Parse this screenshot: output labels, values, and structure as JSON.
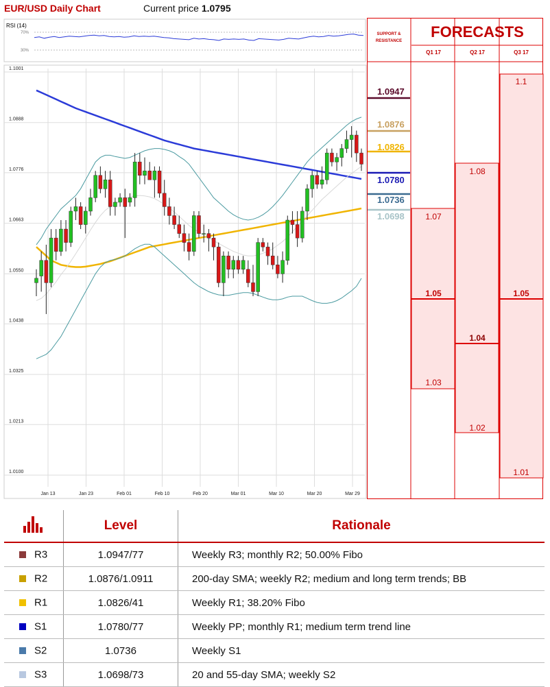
{
  "header": {
    "title": "EUR/USD Daily Chart",
    "current_label": "Current price",
    "current_value": "1.0795"
  },
  "rsi": {
    "label": "RSI (14)",
    "level70": "70%",
    "level30": "30%"
  },
  "forecasts_title": "FORECASTS",
  "sr_header": "SUPPORT & RESISTANCE",
  "quarters": [
    "Q1 17",
    "Q2 17",
    "Q3 17"
  ],
  "sr_levels": [
    {
      "value": "1.0947",
      "color": "#5a0a2a"
    },
    {
      "value": "1.0876",
      "color": "#c8a060"
    },
    {
      "value": "1.0826",
      "color": "#f0b400"
    },
    {
      "value": "1.0780",
      "color": "#1a1ab4"
    },
    {
      "value": "1.0736",
      "color": "#3a6a90"
    },
    {
      "value": "1.0698",
      "color": "#a8c4c8"
    }
  ],
  "forecast_ranges": [
    {
      "quarter": "Q1 17",
      "high": "1.07",
      "mid": "1.05",
      "low": "1.03"
    },
    {
      "quarter": "Q2 17",
      "high": "1.08",
      "mid": "1.04",
      "low": "1.02"
    },
    {
      "quarter": "Q3 17",
      "high": "1.1",
      "mid": "1.05",
      "low": "1.01"
    }
  ],
  "table": {
    "col_level": "Level",
    "col_rationale": "Rationale",
    "rows": [
      {
        "name": "R3",
        "level": "1.0947/77",
        "rationale": "Weekly R3; monthly R2; 50.00% Fibo",
        "color": "#8b3a3a"
      },
      {
        "name": "R2",
        "level": "1.0876/1.0911",
        "rationale": "200-day SMA; weekly R2; medium and long term trends; BB",
        "color": "#c8a000"
      },
      {
        "name": "R1",
        "level": "1.0826/41",
        "rationale": "Weekly R1; 38.20% Fibo",
        "color": "#f0c000"
      },
      {
        "name": "S1",
        "level": "1.0780/77",
        "rationale": "Weekly PP; monthly R1; medium term trend line",
        "color": "#0000c0"
      },
      {
        "name": "S2",
        "level": "1.0736",
        "rationale": "Weekly S1",
        "color": "#4a7aaa"
      },
      {
        "name": "S3",
        "level": "1.0698/73",
        "rationale": "20 and 55-day SMA; weekly S2",
        "color": "#b8c8e0"
      }
    ]
  },
  "chart_data": {
    "type": "candlestick",
    "title": "EUR/USD Daily Chart",
    "ylim": [
      1.01,
      1.1001
    ],
    "y_ticks": [
      "1.1001",
      "1.0888",
      "1.0776",
      "1.0663",
      "1.0550",
      "1.0438",
      "1.0325",
      "1.0213",
      "1.0100"
    ],
    "x_ticks": [
      "Jan 13",
      "Jan 23",
      "Feb 01",
      "Feb 10",
      "Feb 20",
      "Mar 01",
      "Mar 10",
      "Mar 20",
      "Mar 29"
    ],
    "candles": [
      [
        1.053,
        1.056,
        1.05,
        1.054
      ],
      [
        1.0545,
        1.06,
        1.051,
        1.058
      ],
      [
        1.058,
        1.0615,
        1.046,
        1.053
      ],
      [
        1.053,
        1.065,
        1.052,
        1.063
      ],
      [
        1.063,
        1.065,
        1.058,
        1.06
      ],
      [
        1.06,
        1.067,
        1.059,
        1.065
      ],
      [
        1.065,
        1.067,
        1.06,
        1.062
      ],
      [
        1.062,
        1.07,
        1.061,
        1.069
      ],
      [
        1.069,
        1.072,
        1.067,
        1.07
      ],
      [
        1.07,
        1.071,
        1.065,
        1.066
      ],
      [
        1.066,
        1.07,
        1.064,
        1.069
      ],
      [
        1.069,
        1.074,
        1.068,
        1.072
      ],
      [
        1.072,
        1.078,
        1.071,
        1.077
      ],
      [
        1.077,
        1.079,
        1.073,
        1.074
      ],
      [
        1.074,
        1.078,
        1.072,
        1.076
      ],
      [
        1.076,
        1.078,
        1.068,
        1.07
      ],
      [
        1.07,
        1.072,
        1.068,
        1.071
      ],
      [
        1.071,
        1.073,
        1.07,
        1.072
      ],
      [
        1.072,
        1.074,
        1.063,
        1.07
      ],
      [
        1.071,
        1.073,
        1.07,
        1.072
      ],
      [
        1.072,
        1.082,
        1.07,
        1.08
      ],
      [
        1.08,
        1.082,
        1.075,
        1.077
      ],
      [
        1.077,
        1.081,
        1.075,
        1.078
      ],
      [
        1.078,
        1.08,
        1.076,
        1.076
      ],
      [
        1.076,
        1.079,
        1.072,
        1.078
      ],
      [
        1.078,
        1.079,
        1.072,
        1.073
      ],
      [
        1.073,
        1.076,
        1.068,
        1.07
      ],
      [
        1.07,
        1.072,
        1.066,
        1.068
      ],
      [
        1.068,
        1.07,
        1.065,
        1.066
      ],
      [
        1.066,
        1.068,
        1.063,
        1.064
      ],
      [
        1.064,
        1.066,
        1.06,
        1.062
      ],
      [
        1.062,
        1.064,
        1.058,
        1.06
      ],
      [
        1.06,
        1.069,
        1.059,
        1.068
      ],
      [
        1.068,
        1.069,
        1.063,
        1.064
      ],
      [
        1.064,
        1.066,
        1.062,
        1.064
      ],
      [
        1.064,
        1.065,
        1.06,
        1.063
      ],
      [
        1.063,
        1.064,
        1.058,
        1.061
      ],
      [
        1.061,
        1.062,
        1.052,
        1.053
      ],
      [
        1.053,
        1.06,
        1.05,
        1.059
      ],
      [
        1.059,
        1.06,
        1.054,
        1.056
      ],
      [
        1.056,
        1.059,
        1.054,
        1.058
      ],
      [
        1.058,
        1.059,
        1.055,
        1.056
      ],
      [
        1.056,
        1.059,
        1.055,
        1.058
      ],
      [
        1.056,
        1.058,
        1.052,
        1.053
      ],
      [
        1.053,
        1.057,
        1.05,
        1.051
      ],
      [
        1.051,
        1.063,
        1.05,
        1.062
      ],
      [
        1.062,
        1.063,
        1.06,
        1.061
      ],
      [
        1.061,
        1.062,
        1.057,
        1.059
      ],
      [
        1.059,
        1.062,
        1.056,
        1.057
      ],
      [
        1.057,
        1.059,
        1.054,
        1.055
      ],
      [
        1.055,
        1.06,
        1.053,
        1.058
      ],
      [
        1.058,
        1.068,
        1.057,
        1.067
      ],
      [
        1.067,
        1.069,
        1.064,
        1.066
      ],
      [
        1.066,
        1.069,
        1.061,
        1.063
      ],
      [
        1.063,
        1.07,
        1.062,
        1.069
      ],
      [
        1.069,
        1.075,
        1.067,
        1.074
      ],
      [
        1.074,
        1.078,
        1.072,
        1.077
      ],
      [
        1.077,
        1.078,
        1.074,
        1.075
      ],
      [
        1.075,
        1.079,
        1.074,
        1.076
      ],
      [
        1.076,
        1.083,
        1.075,
        1.082
      ],
      [
        1.082,
        1.083,
        1.079,
        1.08
      ],
      [
        1.08,
        1.082,
        1.078,
        1.081
      ],
      [
        1.081,
        1.084,
        1.079,
        1.083
      ],
      [
        1.083,
        1.087,
        1.082,
        1.085
      ],
      [
        1.085,
        1.088,
        1.081,
        1.086
      ],
      [
        1.086,
        1.087,
        1.08,
        1.082
      ],
      [
        1.082,
        1.083,
        1.078,
        1.0795
      ]
    ],
    "series": [
      {
        "name": "200-day SMA",
        "color": "#2b3bd8",
        "values": [
          1.096,
          1.0955,
          1.095,
          1.0945,
          1.094,
          1.0935,
          1.093,
          1.0925,
          1.092,
          1.0916,
          1.0912,
          1.0908,
          1.0904,
          1.09,
          1.0896,
          1.0892,
          1.0888,
          1.0884,
          1.088,
          1.0876,
          1.0872,
          1.0868,
          1.0864,
          1.086,
          1.0856,
          1.0852,
          1.0848,
          1.0845,
          1.0842,
          1.0839,
          1.0836,
          1.0833,
          1.083,
          1.0828,
          1.0826,
          1.0824,
          1.0822,
          1.082,
          1.0818,
          1.0816,
          1.0814,
          1.0812,
          1.081,
          1.0808,
          1.0806,
          1.0804,
          1.0802,
          1.08,
          1.0798,
          1.0796,
          1.0794,
          1.0792,
          1.079,
          1.0788,
          1.0786,
          1.0784,
          1.0782,
          1.078,
          1.0778,
          1.0776,
          1.0774,
          1.0772,
          1.077,
          1.0768,
          1.0766,
          1.0764,
          1.0762
        ]
      },
      {
        "name": "55-day SMA",
        "color": "#f0b400",
        "values": [
          1.061,
          1.06,
          1.059,
          1.058,
          1.0575,
          1.057,
          1.0568,
          1.0566,
          1.0565,
          1.0565,
          1.0566,
          1.0568,
          1.057,
          1.0572,
          1.0575,
          1.0578,
          1.0582,
          1.0586,
          1.059,
          1.0594,
          1.0598,
          1.0602,
          1.0606,
          1.061,
          1.0612,
          1.0614,
          1.0616,
          1.0618,
          1.062,
          1.0622,
          1.0624,
          1.0626,
          1.0628,
          1.063,
          1.0632,
          1.0634,
          1.0636,
          1.0638,
          1.064,
          1.0642,
          1.0644,
          1.0646,
          1.0648,
          1.065,
          1.0652,
          1.0654,
          1.0656,
          1.0658,
          1.066,
          1.0662,
          1.0664,
          1.0666,
          1.0668,
          1.067,
          1.0672,
          1.0674,
          1.0676,
          1.0678,
          1.068,
          1.0682,
          1.0684,
          1.0686,
          1.0688,
          1.069,
          1.0692,
          1.0694,
          1.0696
        ]
      },
      {
        "name": "Upper BB",
        "color": "#4a9aa0",
        "values": [
          1.0615,
          1.063,
          1.065,
          1.0665,
          1.068,
          1.0695,
          1.0705,
          1.0715,
          1.0725,
          1.074,
          1.076,
          1.078,
          1.08,
          1.081,
          1.0815,
          1.0815,
          1.0812,
          1.081,
          1.0808,
          1.081,
          1.0815,
          1.082,
          1.0825,
          1.0828,
          1.083,
          1.083,
          1.0828,
          1.0825,
          1.082,
          1.0812,
          1.0805,
          1.0795,
          1.078,
          1.0765,
          1.075,
          1.0735,
          1.072,
          1.071,
          1.07,
          1.069,
          1.0682,
          1.0676,
          1.0672,
          1.067,
          1.0672,
          1.0676,
          1.0682,
          1.069,
          1.07,
          1.0712,
          1.0725,
          1.074,
          1.0755,
          1.077,
          1.0785,
          1.08,
          1.0812,
          1.0822,
          1.0832,
          1.0842,
          1.0852,
          1.0862,
          1.0872,
          1.0882,
          1.089,
          1.0896,
          1.09
        ]
      },
      {
        "name": "Lower BB",
        "color": "#4a9aa0",
        "values": [
          1.036,
          1.0365,
          1.037,
          1.038,
          1.0395,
          1.041,
          1.043,
          1.045,
          1.047,
          1.049,
          1.051,
          1.053,
          1.055,
          1.0565,
          1.0575,
          1.058,
          1.0582,
          1.0585,
          1.059,
          1.0598,
          1.0606,
          1.0612,
          1.0616,
          1.0616,
          1.061,
          1.06,
          1.059,
          1.058,
          1.057,
          1.056,
          1.055,
          1.054,
          1.053,
          1.0522,
          1.0516,
          1.051,
          1.0506,
          1.0503,
          1.0502,
          1.0502,
          1.0504,
          1.0506,
          1.0508,
          1.0508,
          1.0506,
          1.0502,
          1.0498,
          1.0494,
          1.0492,
          1.0492,
          1.0494,
          1.0498,
          1.05,
          1.05,
          1.05,
          1.0495,
          1.049,
          1.0486,
          1.0484,
          1.0484,
          1.0486,
          1.049,
          1.0496,
          1.0504,
          1.0512,
          1.0522,
          1.054
        ]
      },
      {
        "name": "20-day SMA",
        "color": "#d8d8d8",
        "values": [
          1.049,
          1.0495,
          1.0505,
          1.0518,
          1.0532,
          1.0548,
          1.0562,
          1.0578,
          1.0595,
          1.0612,
          1.063,
          1.0648,
          1.0665,
          1.068,
          1.0692,
          1.07,
          1.0706,
          1.0712,
          1.0718,
          1.0722,
          1.0724,
          1.0725,
          1.0724,
          1.0722,
          1.0718,
          1.0712,
          1.0705,
          1.0697,
          1.0688,
          1.0678,
          1.0668,
          1.0658,
          1.065,
          1.0643,
          1.0636,
          1.063,
          1.0624,
          1.0618,
          1.0612,
          1.0606,
          1.06,
          1.0596,
          1.0592,
          1.059,
          1.059,
          1.0592,
          1.0596,
          1.06,
          1.0606,
          1.0614,
          1.0622,
          1.0632,
          1.0644,
          1.0656,
          1.0668,
          1.068,
          1.0692,
          1.0704,
          1.0716,
          1.0726,
          1.0736,
          1.0746,
          1.0756,
          1.0766,
          1.0774,
          1.0782,
          1.079
        ]
      }
    ],
    "rsi_values": [
      60,
      62,
      58,
      61,
      63,
      60,
      62,
      64,
      63,
      62,
      64,
      66,
      67,
      65,
      66,
      63,
      62,
      63,
      61,
      62,
      65,
      63,
      64,
      63,
      64,
      62,
      60,
      59,
      57,
      56,
      55,
      54,
      58,
      56,
      57,
      55,
      54,
      52,
      56,
      55,
      56,
      55,
      56,
      53,
      52,
      57,
      56,
      55,
      54,
      53,
      55,
      58,
      57,
      56,
      59,
      62,
      64,
      62,
      63,
      66,
      64,
      65,
      67,
      69,
      70,
      67,
      66
    ]
  }
}
